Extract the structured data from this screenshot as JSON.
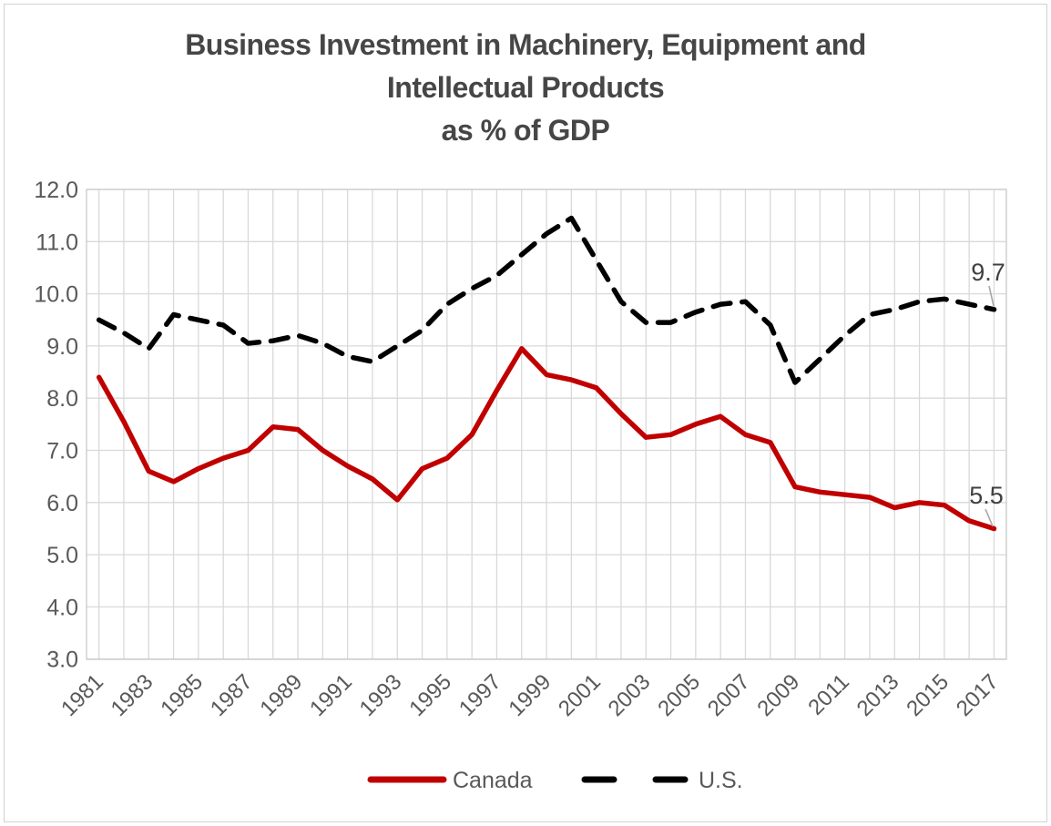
{
  "chart_data": {
    "type": "line",
    "title_lines": [
      "Business Investment in Machinery, Equipment and",
      "Intellectual Products",
      "as % of GDP"
    ],
    "x": [
      1981,
      1982,
      1983,
      1984,
      1985,
      1986,
      1987,
      1988,
      1989,
      1990,
      1991,
      1992,
      1993,
      1994,
      1995,
      1996,
      1997,
      1998,
      1999,
      2000,
      2001,
      2002,
      2003,
      2004,
      2005,
      2006,
      2007,
      2008,
      2009,
      2010,
      2011,
      2012,
      2013,
      2014,
      2015,
      2016,
      2017
    ],
    "x_tick_labels": [
      "1981",
      "1983",
      "1985",
      "1987",
      "1989",
      "1991",
      "1993",
      "1995",
      "1997",
      "1999",
      "2001",
      "2003",
      "2005",
      "2007",
      "2009",
      "2011",
      "2013",
      "2015",
      "2017"
    ],
    "y_ticks": [
      "12.0",
      "11.0",
      "10.0",
      "9.0",
      "8.0",
      "7.0",
      "6.0",
      "5.0",
      "4.0",
      "3.0"
    ],
    "ylim": [
      3.0,
      12.0
    ],
    "grid": true,
    "legend_position": "bottom",
    "series": [
      {
        "name": "Canada",
        "color": "#C00000",
        "style": "solid",
        "end_label": "5.5",
        "values": [
          8.4,
          7.55,
          6.6,
          6.4,
          6.65,
          6.85,
          7.0,
          7.45,
          7.4,
          7.0,
          6.7,
          6.45,
          6.05,
          6.65,
          6.85,
          7.3,
          8.15,
          8.95,
          8.45,
          8.35,
          8.2,
          7.7,
          7.25,
          7.3,
          7.5,
          7.65,
          7.3,
          7.15,
          6.3,
          6.2,
          6.15,
          6.1,
          5.9,
          6.0,
          5.95,
          5.65,
          5.5
        ]
      },
      {
        "name": "U.S.",
        "color": "#000000",
        "style": "dashed",
        "end_label": "9.7",
        "values": [
          9.5,
          9.25,
          8.95,
          9.6,
          9.5,
          9.4,
          9.05,
          9.1,
          9.2,
          9.05,
          8.8,
          8.7,
          9.0,
          9.3,
          9.8,
          10.1,
          10.35,
          10.75,
          11.15,
          11.45,
          10.65,
          9.85,
          9.45,
          9.45,
          9.65,
          9.8,
          9.85,
          9.4,
          8.3,
          8.75,
          9.2,
          9.6,
          9.7,
          9.85,
          9.9,
          9.8,
          9.7
        ]
      }
    ]
  },
  "colors": {
    "title_text": "#464646",
    "axis_text": "#595959",
    "gridline": "#d9d9d9",
    "plot_border": "#c9c9c9",
    "data_label_text": "#404040",
    "leader_line": "#a6a6a6",
    "canada_line": "#C00000",
    "us_line": "#000000"
  }
}
